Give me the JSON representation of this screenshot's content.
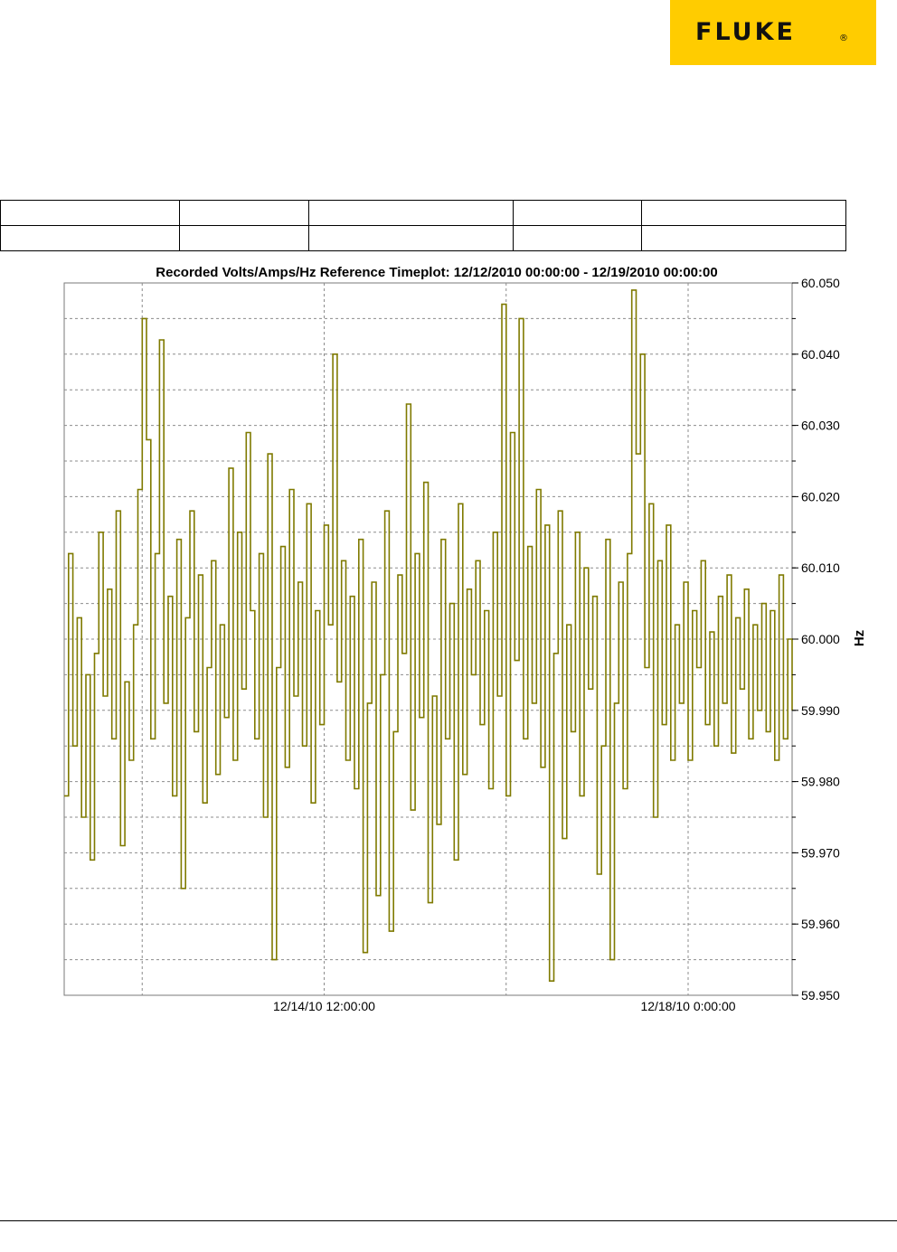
{
  "brand": {
    "name": "FLUKE",
    "reg_mark": "®",
    "color": "#ffcc00"
  },
  "summary_table": {
    "rows": [
      [
        "",
        "",
        "",
        "",
        ""
      ],
      [
        "",
        "",
        "",
        "",
        ""
      ]
    ]
  },
  "chart_data": {
    "type": "line",
    "title": "Recorded Volts/Amps/Hz Reference Timeplot: 12/12/2010 00:00:00 - 12/19/2010 00:00:00",
    "ylabel": "Hz",
    "xlabel": "",
    "x_range": [
      "12/12/2010 00:00:00",
      "12/19/2010 00:00:00"
    ],
    "ylim": [
      59.95,
      60.05
    ],
    "y_ticks": [
      "60.050",
      "60.040",
      "60.030",
      "60.020",
      "60.010",
      "60.000",
      "59.990",
      "59.980",
      "59.970",
      "59.960",
      "59.950"
    ],
    "x_tick_labels": [
      {
        "label": "12/14/10 12:00:00",
        "x": "12/14/2010 12:00:00"
      },
      {
        "label": "12/18/10 0:00:00",
        "x": "12/18/2010 00:00:00"
      }
    ],
    "grid": true,
    "line_color": "#7f7a00",
    "series": [
      {
        "x_unit": "hours since 12/12/2010 00:00:00",
        "points": [
          [
            0,
            59.978
          ],
          [
            1,
            60.012
          ],
          [
            2,
            59.985
          ],
          [
            3,
            60.003
          ],
          [
            4,
            59.975
          ],
          [
            5,
            59.995
          ],
          [
            6,
            59.969
          ],
          [
            7,
            59.998
          ],
          [
            8,
            60.015
          ],
          [
            9,
            59.992
          ],
          [
            10,
            60.007
          ],
          [
            11,
            59.986
          ],
          [
            12,
            60.018
          ],
          [
            13,
            59.971
          ],
          [
            14,
            59.994
          ],
          [
            15,
            59.983
          ],
          [
            16,
            60.002
          ],
          [
            17,
            60.021
          ],
          [
            18,
            60.045
          ],
          [
            19,
            60.028
          ],
          [
            20,
            59.986
          ],
          [
            21,
            60.012
          ],
          [
            22,
            60.042
          ],
          [
            23,
            59.991
          ],
          [
            24,
            60.006
          ],
          [
            25,
            59.978
          ],
          [
            26,
            60.014
          ],
          [
            27,
            59.965
          ],
          [
            28,
            60.003
          ],
          [
            29,
            60.018
          ],
          [
            30,
            59.987
          ],
          [
            31,
            60.009
          ],
          [
            32,
            59.977
          ],
          [
            33,
            59.996
          ],
          [
            34,
            60.011
          ],
          [
            35,
            59.981
          ],
          [
            36,
            60.002
          ],
          [
            37,
            59.989
          ],
          [
            38,
            60.024
          ],
          [
            39,
            59.983
          ],
          [
            40,
            60.015
          ],
          [
            41,
            59.993
          ],
          [
            42,
            60.029
          ],
          [
            43,
            60.004
          ],
          [
            44,
            59.986
          ],
          [
            45,
            60.012
          ],
          [
            46,
            59.975
          ],
          [
            47,
            60.026
          ],
          [
            48,
            59.955
          ],
          [
            49,
            59.996
          ],
          [
            50,
            60.013
          ],
          [
            51,
            59.982
          ],
          [
            52,
            60.021
          ],
          [
            53,
            59.992
          ],
          [
            54,
            60.008
          ],
          [
            55,
            59.985
          ],
          [
            56,
            60.019
          ],
          [
            57,
            59.977
          ],
          [
            58,
            60.004
          ],
          [
            59,
            59.988
          ],
          [
            60,
            60.016
          ],
          [
            61,
            60.002
          ],
          [
            62,
            60.04
          ],
          [
            63,
            59.994
          ],
          [
            64,
            60.011
          ],
          [
            65,
            59.983
          ],
          [
            66,
            60.006
          ],
          [
            67,
            59.979
          ],
          [
            68,
            60.014
          ],
          [
            69,
            59.956
          ],
          [
            70,
            59.991
          ],
          [
            71,
            60.008
          ],
          [
            72,
            59.964
          ],
          [
            73,
            59.995
          ],
          [
            74,
            60.018
          ],
          [
            75,
            59.959
          ],
          [
            76,
            59.987
          ],
          [
            77,
            60.009
          ],
          [
            78,
            59.998
          ],
          [
            79,
            60.033
          ],
          [
            80,
            59.976
          ],
          [
            81,
            60.012
          ],
          [
            82,
            59.989
          ],
          [
            83,
            60.022
          ],
          [
            84,
            59.963
          ],
          [
            85,
            59.992
          ],
          [
            86,
            59.974
          ],
          [
            87,
            60.014
          ],
          [
            88,
            59.986
          ],
          [
            89,
            60.005
          ],
          [
            90,
            59.969
          ],
          [
            91,
            60.019
          ],
          [
            92,
            59.981
          ],
          [
            93,
            60.007
          ],
          [
            94,
            59.995
          ],
          [
            95,
            60.011
          ],
          [
            96,
            59.988
          ],
          [
            97,
            60.004
          ],
          [
            98,
            59.979
          ],
          [
            99,
            60.015
          ],
          [
            100,
            59.992
          ],
          [
            101,
            60.047
          ],
          [
            102,
            59.978
          ],
          [
            103,
            60.029
          ],
          [
            104,
            59.997
          ],
          [
            105,
            60.045
          ],
          [
            106,
            59.986
          ],
          [
            107,
            60.013
          ],
          [
            108,
            59.991
          ],
          [
            109,
            60.021
          ],
          [
            110,
            59.982
          ],
          [
            111,
            60.016
          ],
          [
            112,
            59.952
          ],
          [
            113,
            59.998
          ],
          [
            114,
            60.018
          ],
          [
            115,
            59.972
          ],
          [
            116,
            60.002
          ],
          [
            117,
            59.987
          ],
          [
            118,
            60.015
          ],
          [
            119,
            59.978
          ],
          [
            120,
            60.01
          ],
          [
            121,
            59.993
          ],
          [
            122,
            60.006
          ],
          [
            123,
            59.967
          ],
          [
            124,
            59.985
          ],
          [
            125,
            60.014
          ],
          [
            126,
            59.955
          ],
          [
            127,
            59.991
          ],
          [
            128,
            60.008
          ],
          [
            129,
            59.979
          ],
          [
            130,
            60.012
          ],
          [
            131,
            60.049
          ],
          [
            132,
            60.026
          ],
          [
            133,
            60.04
          ],
          [
            134,
            59.996
          ],
          [
            135,
            60.019
          ],
          [
            136,
            59.975
          ],
          [
            137,
            60.011
          ],
          [
            138,
            59.988
          ],
          [
            139,
            60.016
          ],
          [
            140,
            59.983
          ],
          [
            141,
            60.002
          ],
          [
            142,
            59.991
          ],
          [
            143,
            60.008
          ],
          [
            144,
            59.983
          ],
          [
            145,
            60.004
          ],
          [
            146,
            59.996
          ],
          [
            147,
            60.011
          ],
          [
            148,
            59.988
          ],
          [
            149,
            60.001
          ],
          [
            150,
            59.985
          ],
          [
            151,
            60.006
          ],
          [
            152,
            59.991
          ],
          [
            153,
            60.009
          ],
          [
            154,
            59.984
          ],
          [
            155,
            60.003
          ],
          [
            156,
            59.993
          ],
          [
            157,
            60.007
          ],
          [
            158,
            59.986
          ],
          [
            159,
            60.002
          ],
          [
            160,
            59.99
          ],
          [
            161,
            60.005
          ],
          [
            162,
            59.987
          ],
          [
            163,
            60.004
          ],
          [
            164,
            59.983
          ],
          [
            165,
            60.009
          ],
          [
            166,
            59.986
          ],
          [
            167,
            60.0
          ],
          [
            168,
            59.99
          ]
        ]
      }
    ]
  }
}
